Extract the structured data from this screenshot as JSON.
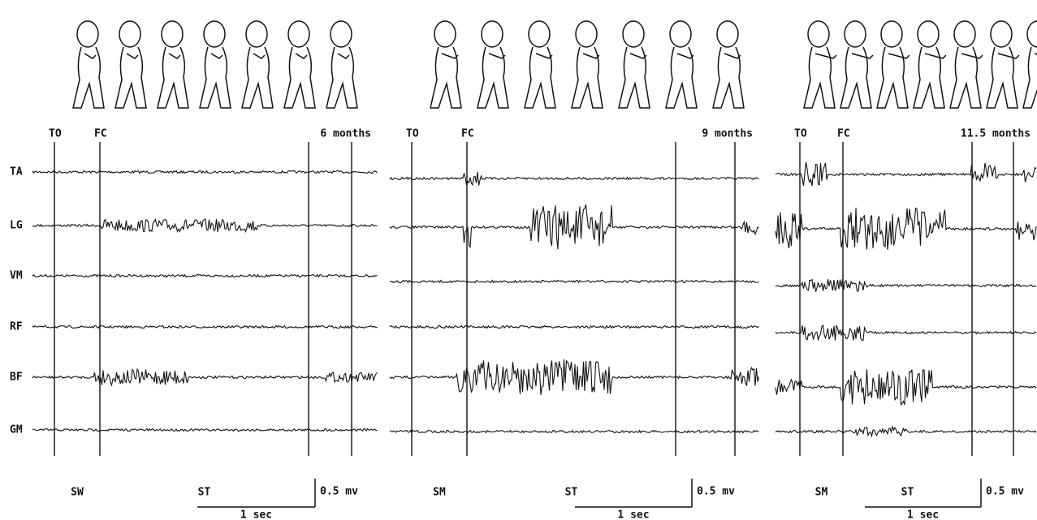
{
  "muscles": [
    "TA",
    "LG",
    "VM",
    "RF",
    "BF",
    "GM"
  ],
  "panels": [
    {
      "markers": [
        "TO",
        "FC"
      ],
      "age": "6 months",
      "phases": [
        "SW",
        "ST"
      ],
      "amplitude_scale": "0.5 mv",
      "time_scale": "1 sec"
    },
    {
      "markers": [
        "TO",
        "FC"
      ],
      "age": "9 months",
      "phases": [
        "SM",
        "ST"
      ],
      "amplitude_scale": "0.5 mv",
      "time_scale": "1 sec"
    },
    {
      "markers": [
        "TO",
        "FC"
      ],
      "age": "11.5 months",
      "phases": [
        "SM",
        "ST"
      ],
      "amplitude_scale": "0.5 mv",
      "time_scale": "1 sec"
    }
  ]
}
